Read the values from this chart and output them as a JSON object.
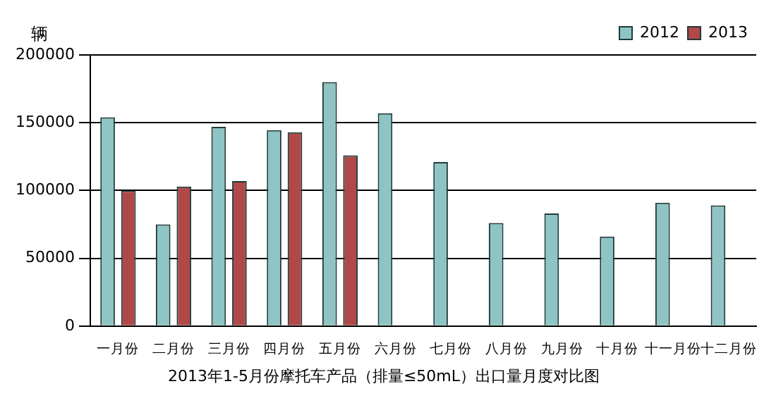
{
  "chart_data": {
    "type": "bar",
    "title": "2013年1-5月份摩托车产品（排量≤50mL）出口量月度对比图",
    "ylabel": "辆",
    "categories": [
      "一月份",
      "二月份",
      "三月份",
      "四月份",
      "五月份",
      "六月份",
      "七月份",
      "八月份",
      "九月份",
      "十月份",
      "十一月份",
      "十二月份"
    ],
    "series": [
      {
        "name": "2012",
        "color": "#8fc4c4",
        "values": [
          154000,
          75000,
          147000,
          144500,
          180000,
          157000,
          121000,
          76000,
          83000,
          66000,
          91000,
          89000
        ]
      },
      {
        "name": "2013",
        "color": "#b04848",
        "values": [
          100000,
          103000,
          107000,
          143000,
          126000,
          null,
          null,
          null,
          null,
          null,
          null,
          null
        ]
      }
    ],
    "ylim": [
      0,
      200000
    ],
    "yticks": [
      0,
      50000,
      100000,
      150000,
      200000
    ],
    "grid": "y",
    "legend": "top right"
  }
}
